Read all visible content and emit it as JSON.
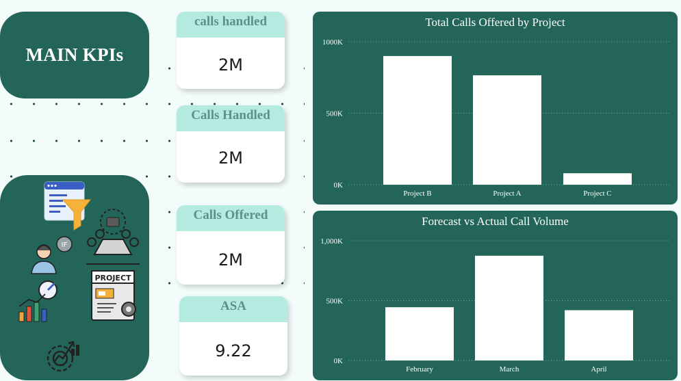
{
  "title_card": {
    "title": "MAIN KPIs"
  },
  "icons": [
    "dashboard-funnel-icon",
    "analyst-if-icon",
    "team-meeting-icon",
    "growth-chart-icon",
    "project-document-icon",
    "gear-growth-icon"
  ],
  "icon_labels": {
    "if_bubble": "IF",
    "project_doc": "PROJECT"
  },
  "kpis": [
    {
      "label": "calls handled",
      "value": "2M"
    },
    {
      "label": "Calls Handled",
      "value": "2M"
    },
    {
      "label": "Calls Offered",
      "value": "2M"
    },
    {
      "label": "ASA",
      "value": "9.22"
    }
  ],
  "colors": {
    "card": "#236659",
    "kpi_header": "#b3ebe1",
    "bar": "#ffffff",
    "background": "#f3fbfb"
  },
  "chart_data": [
    {
      "type": "bar",
      "title": "Total Calls Offered by Project",
      "categories": [
        "Project B",
        "Project A",
        "Project C"
      ],
      "values": [
        900000,
        765000,
        80000
      ],
      "ylim": [
        0,
        1000000
      ],
      "yticks": [
        {
          "value": 1000000,
          "label": "1000K"
        },
        {
          "value": 500000,
          "label": "500K"
        },
        {
          "value": 0,
          "label": "0K"
        }
      ],
      "grid": true
    },
    {
      "type": "bar",
      "title": "Forecast vs Actual Call Volume",
      "categories": [
        "February",
        "March",
        "April"
      ],
      "values": [
        445000,
        875000,
        420000
      ],
      "ylim": [
        0,
        1000000
      ],
      "yticks": [
        {
          "value": 1000000,
          "label": "1,000K"
        },
        {
          "value": 500000,
          "label": "500K"
        },
        {
          "value": 0,
          "label": "0K"
        }
      ],
      "grid": true
    }
  ]
}
